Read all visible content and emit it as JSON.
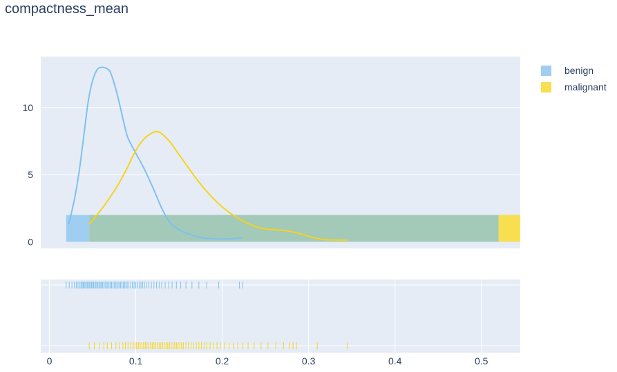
{
  "chart_data": {
    "type": "distplot",
    "title": "compactness_mean",
    "xlabel": "",
    "ylabel": "",
    "xlim": [
      -0.01,
      0.545
    ],
    "ylim_density": [
      -0.5,
      13.8
    ],
    "x_ticks": [
      0,
      0.1,
      0.2,
      0.3,
      0.4,
      0.5
    ],
    "x_tick_labels": [
      "0",
      "0.1",
      "0.2",
      "0.3",
      "0.4",
      "0.5"
    ],
    "y_ticks": [
      0,
      5,
      10
    ],
    "y_tick_labels": [
      "0",
      "5",
      "10"
    ],
    "grid": true,
    "legend_position": "top-right",
    "series": [
      {
        "name": "benign",
        "color": "#7fc1ed",
        "hist_color": "#9fcef1",
        "hist_bins": [
          {
            "x0": 0.02,
            "x1": 0.52,
            "y": 2
          }
        ],
        "kde_x": [
          0.0224,
          0.025,
          0.03,
          0.035,
          0.04,
          0.045,
          0.05,
          0.055,
          0.06,
          0.065,
          0.07,
          0.075,
          0.08,
          0.085,
          0.09,
          0.095,
          0.1,
          0.11,
          0.12,
          0.13,
          0.14,
          0.15,
          0.16,
          0.17,
          0.18,
          0.19,
          0.2,
          0.21,
          0.2236
        ],
        "kde_y": [
          1.3,
          2.0,
          3.5,
          5.5,
          8.0,
          10.5,
          12.0,
          12.8,
          13.0,
          12.95,
          12.7,
          11.8,
          10.6,
          9.2,
          7.9,
          7.2,
          6.6,
          5.4,
          4.0,
          2.5,
          1.4,
          0.9,
          0.6,
          0.4,
          0.28,
          0.22,
          0.2,
          0.22,
          0.3
        ],
        "rug": [
          0.0194,
          0.0229,
          0.0261,
          0.0289,
          0.0311,
          0.0331,
          0.0349,
          0.0365,
          0.0378,
          0.039,
          0.04,
          0.0412,
          0.0425,
          0.0438,
          0.045,
          0.0462,
          0.0475,
          0.0488,
          0.05,
          0.0512,
          0.0525,
          0.0538,
          0.055,
          0.0562,
          0.0575,
          0.0588,
          0.06,
          0.0615,
          0.063,
          0.0645,
          0.066,
          0.0675,
          0.069,
          0.0705,
          0.072,
          0.0735,
          0.075,
          0.0765,
          0.078,
          0.0795,
          0.081,
          0.0825,
          0.084,
          0.0855,
          0.087,
          0.0885,
          0.09,
          0.092,
          0.094,
          0.096,
          0.098,
          0.1,
          0.102,
          0.104,
          0.106,
          0.108,
          0.11,
          0.112,
          0.115,
          0.118,
          0.121,
          0.124,
          0.127,
          0.13,
          0.134,
          0.138,
          0.142,
          0.147,
          0.152,
          0.158,
          0.165,
          0.173,
          0.182,
          0.196,
          0.22,
          0.2236
        ]
      },
      {
        "name": "malignant",
        "color": "#f7d31b",
        "hist_color": "#f8df4f",
        "hist_bins": [
          {
            "x0": 0.52,
            "x1": 0.545,
            "y": 2
          }
        ],
        "kde_x": [
          0.0461,
          0.06,
          0.07,
          0.08,
          0.09,
          0.1,
          0.11,
          0.12,
          0.125,
          0.13,
          0.14,
          0.15,
          0.16,
          0.17,
          0.18,
          0.19,
          0.2,
          0.21,
          0.22,
          0.23,
          0.24,
          0.25,
          0.26,
          0.27,
          0.28,
          0.29,
          0.3,
          0.31,
          0.32,
          0.3454
        ],
        "kde_y": [
          1.3,
          2.4,
          3.3,
          4.3,
          5.5,
          6.8,
          7.7,
          8.15,
          8.2,
          8.05,
          7.4,
          6.5,
          5.6,
          4.7,
          3.9,
          3.2,
          2.6,
          2.1,
          1.7,
          1.35,
          1.1,
          0.95,
          0.9,
          0.85,
          0.75,
          0.6,
          0.4,
          0.25,
          0.15,
          0.12
        ],
        "rug": [
          0.0461,
          0.052,
          0.058,
          0.063,
          0.067,
          0.072,
          0.077,
          0.081,
          0.085,
          0.088,
          0.091,
          0.094,
          0.097,
          0.099,
          0.101,
          0.103,
          0.105,
          0.107,
          0.109,
          0.111,
          0.113,
          0.115,
          0.117,
          0.119,
          0.121,
          0.123,
          0.125,
          0.127,
          0.129,
          0.131,
          0.133,
          0.135,
          0.137,
          0.139,
          0.141,
          0.143,
          0.145,
          0.147,
          0.149,
          0.151,
          0.153,
          0.155,
          0.158,
          0.161,
          0.164,
          0.167,
          0.17,
          0.173,
          0.176,
          0.179,
          0.182,
          0.186,
          0.19,
          0.194,
          0.198,
          0.203,
          0.208,
          0.213,
          0.218,
          0.224,
          0.23,
          0.237,
          0.245,
          0.253,
          0.262,
          0.271,
          0.278,
          0.282,
          0.286,
          0.31,
          0.3454
        ]
      }
    ],
    "overlap_color": "#a3c9b8"
  }
}
